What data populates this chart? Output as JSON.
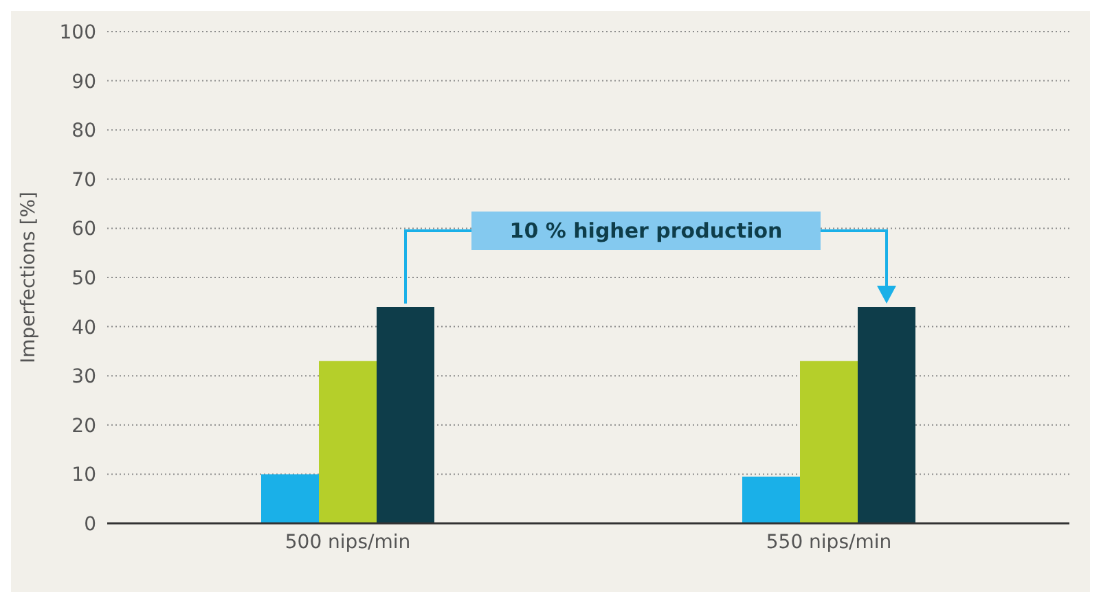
{
  "chart_data": {
    "type": "bar",
    "ylabel": "Imperfections [%]",
    "categories": [
      "500 nips/min",
      "550 nips/min"
    ],
    "series": [
      {
        "color": "#1ab0e8",
        "values": [
          10,
          9.5
        ]
      },
      {
        "color": "#b5cf2a",
        "values": [
          33,
          33
        ]
      },
      {
        "color": "#0e3d4a",
        "values": [
          44,
          44
        ]
      }
    ],
    "ylim": [
      0,
      100
    ],
    "yticks": [
      0,
      10,
      20,
      30,
      40,
      50,
      60,
      70,
      80,
      90,
      100
    ],
    "grid": "y",
    "legend": false,
    "annotations": [
      "10 % higher production"
    ]
  }
}
